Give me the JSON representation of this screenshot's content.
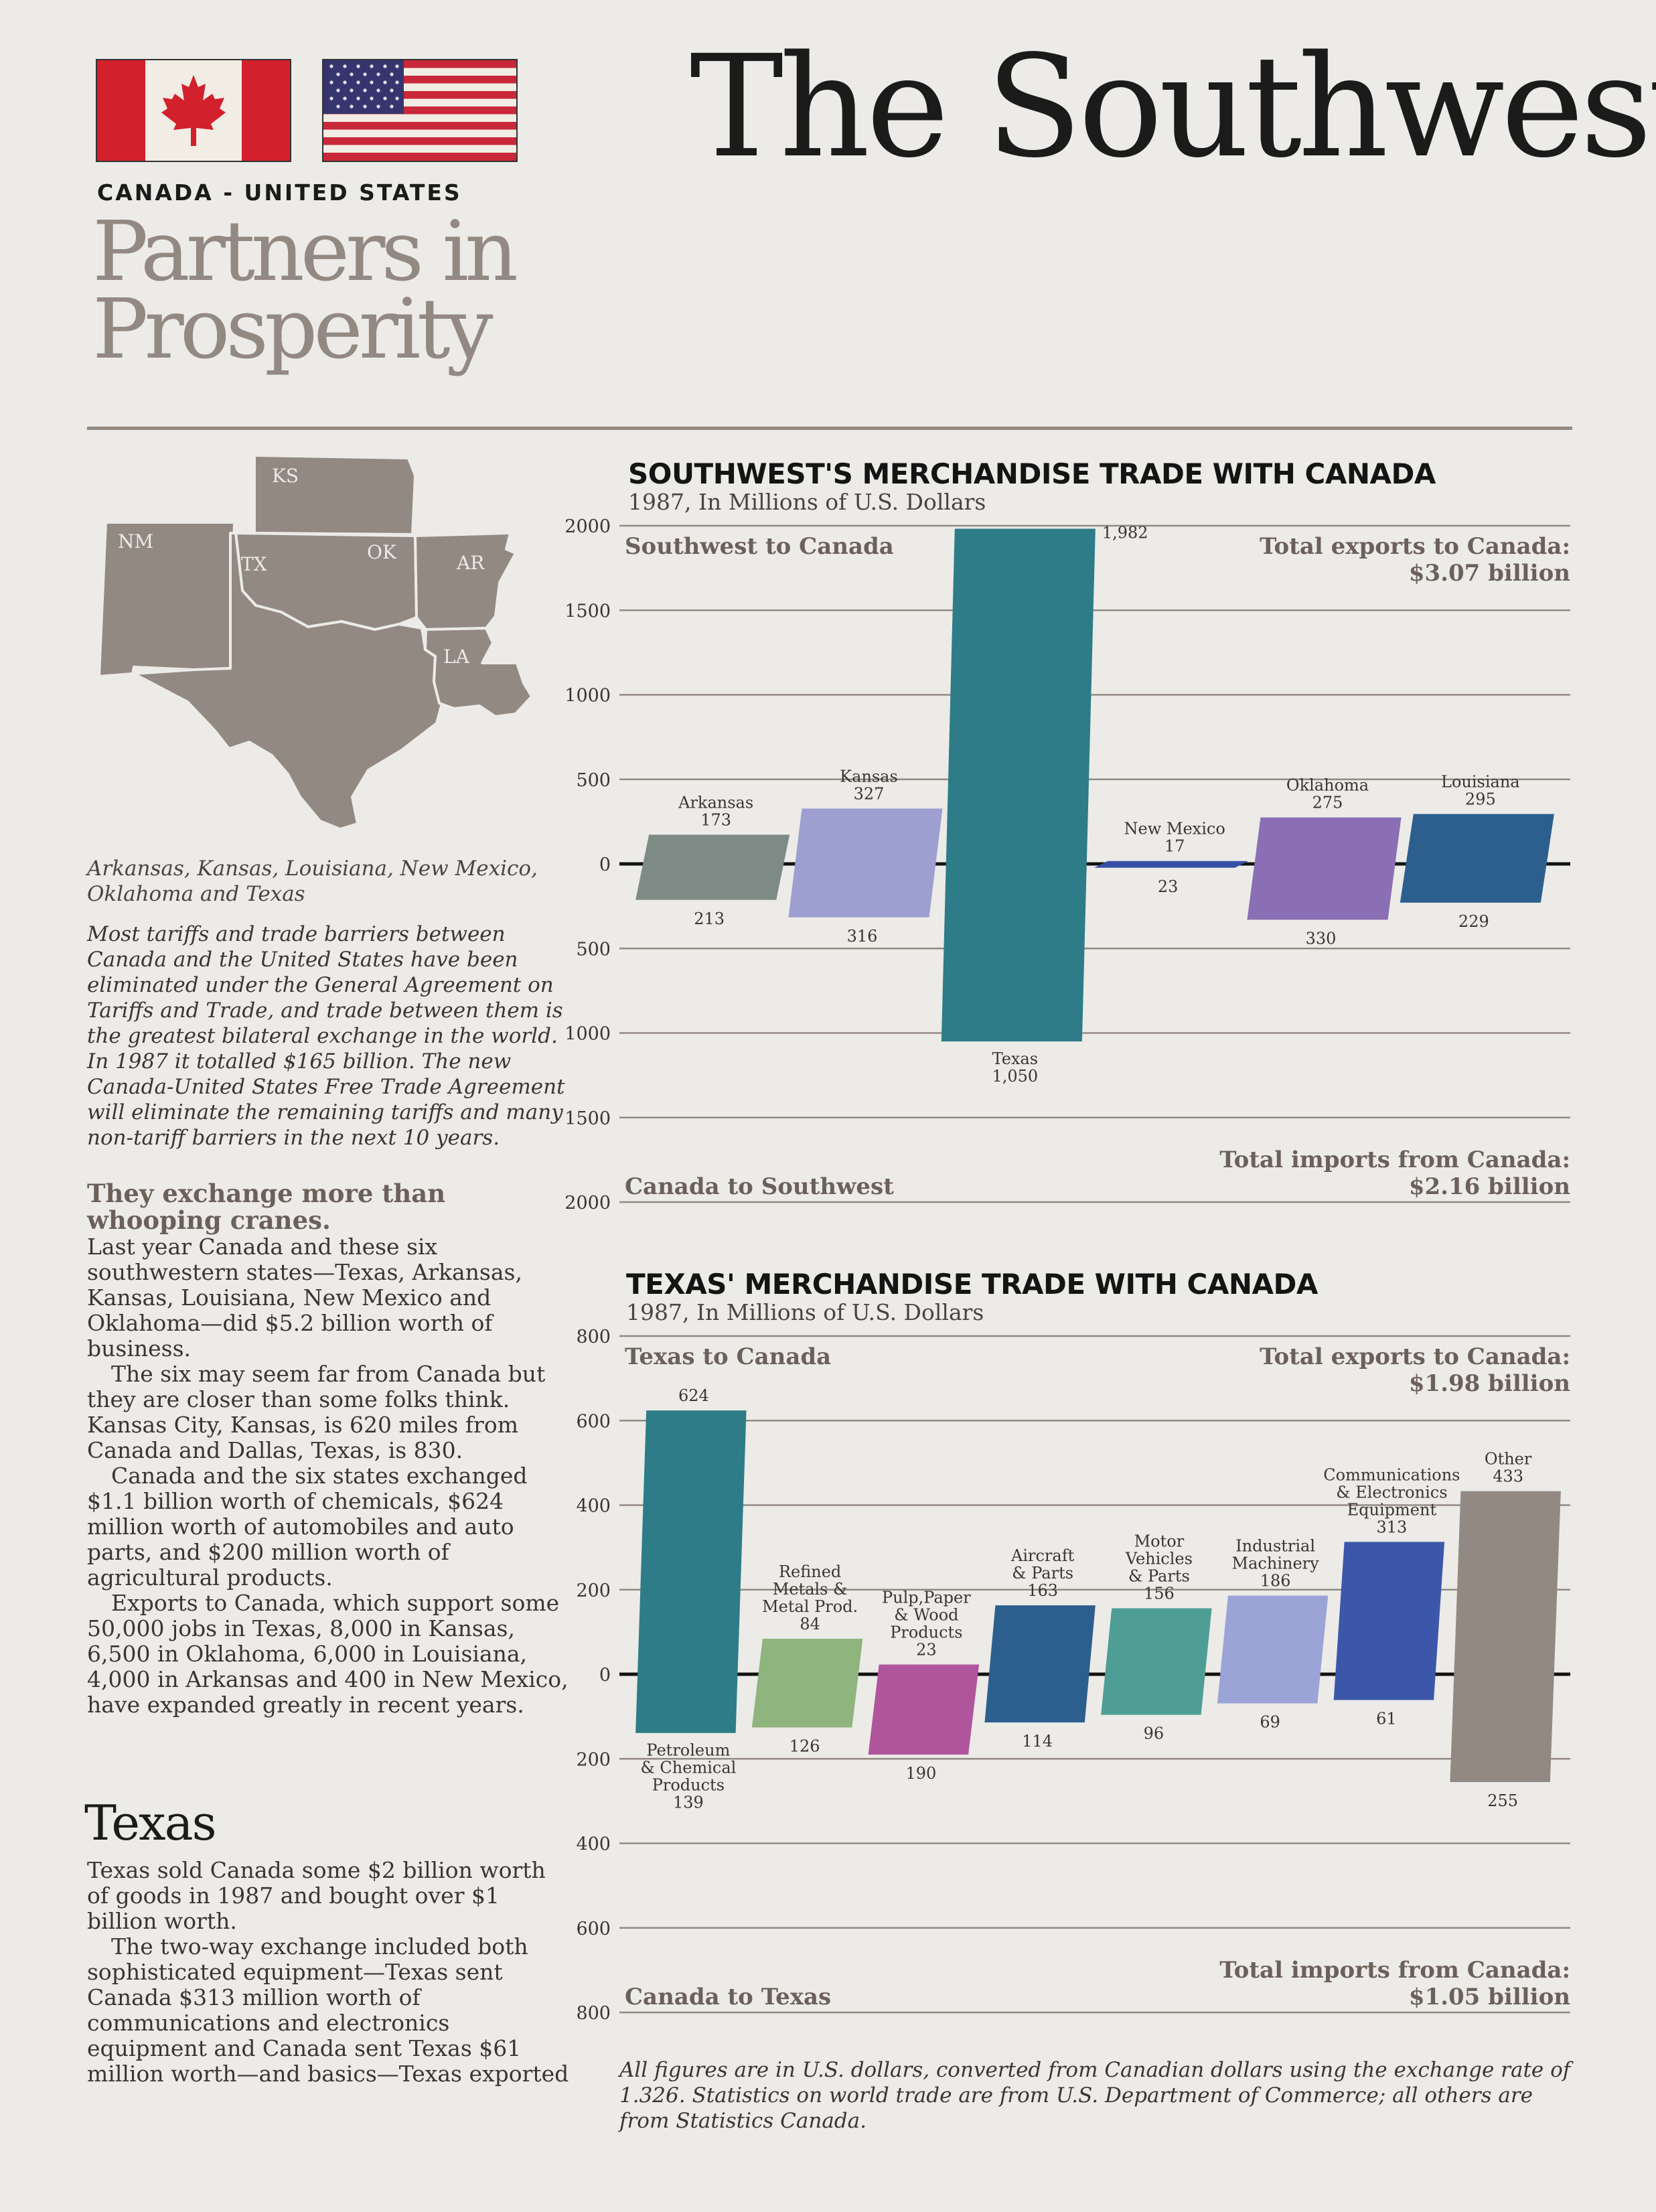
{
  "header": {
    "title": "The Southwest",
    "country_label": "CANADA - UNITED STATES",
    "subtitle_line1": "Partners in",
    "subtitle_line2": "Prosperity"
  },
  "map": {
    "states": [
      "KS",
      "NM",
      "TX",
      "OK",
      "AR",
      "LA"
    ],
    "fill_color": "#938983"
  },
  "left_column": {
    "states_caption": "Arkansas, Kansas, Louisiana, New Mexico, Oklahoma and Texas",
    "intro": "Most tariffs and trade barriers between Canada and the United States have been eliminated under the General Agreement on Tariffs and Trade, and trade between them is the greatest bilateral exchange in the world. In 1987 it totalled $165 billion. The new Canada-United States Free Trade Agreement will eliminate the remaining tariffs and many non-tariff barriers in the next 10 years.",
    "subhead": "They exchange more than whooping cranes.",
    "paragraphs": [
      "Last year Canada and these six southwestern states—Texas, Arkansas, Kansas, Louisiana, New Mexico and Oklahoma—did $5.2 billion worth of business.",
      "The six may seem far from Canada but they are closer than some folks think. Kansas City, Kansas, is 620 miles from Canada and Dallas, Texas, is 830.",
      "Canada and the six states exchanged $1.1 billion worth of chemicals, $624 million worth of automobiles and auto parts, and $200 million worth of agricultural products.",
      "Exports to Canada, which support some 50,000 jobs in Texas, 8,000 in Kansas, 6,500 in Oklahoma, 6,000 in Louisiana, 4,000 in Arkansas and 400 in New Mexico, have expanded greatly in recent years."
    ],
    "texas_heading": "Texas",
    "texas_paragraphs": [
      "Texas sold Canada some $2 billion worth of goods in 1987 and bought over $1 billion worth.",
      "The two-way exchange included both sophisticated equipment—Texas sent Canada $313 million worth of communications and electronics equipment and Canada sent Texas $61 million worth—and basics—Texas exported"
    ]
  },
  "chart_data": [
    {
      "type": "bar",
      "title": "SOUTHWEST'S MERCHANDISE TRADE WITH CANADA",
      "subtitle": "1987, In Millions of U.S. Dollars",
      "upper_label": "Southwest to Canada",
      "lower_label": "Canada to Southwest",
      "total_exports_label": "Total exports to Canada:",
      "total_exports_value": "$3.07 billion",
      "total_imports_label": "Total imports from Canada:",
      "total_imports_value": "$2.16 billion",
      "y_ticks": [
        "2000",
        "1500",
        "1000",
        "500",
        "0",
        "500",
        "1000",
        "1500",
        "2000"
      ],
      "ylim": [
        -2000,
        2000
      ],
      "categories": [
        {
          "name": "Arkansas",
          "exports": 173,
          "imports": 213,
          "exports_label": "173",
          "imports_label": "213",
          "color": "#7e8a85"
        },
        {
          "name": "Kansas",
          "exports": 327,
          "imports": 316,
          "exports_label": "327",
          "imports_label": "316",
          "color": "#9c9fd0"
        },
        {
          "name": "Texas",
          "exports": 1982,
          "imports": 1050,
          "exports_label": "1,982",
          "imports_label": "1,050",
          "color": "#2d7c88"
        },
        {
          "name": "New Mexico",
          "exports": 17,
          "imports": 23,
          "exports_label": "17",
          "imports_label": "23",
          "color": "#3650a5"
        },
        {
          "name": "Oklahoma",
          "exports": 275,
          "imports": 330,
          "exports_label": "275",
          "imports_label": "330",
          "color": "#8a6fb5"
        },
        {
          "name": "Louisiana",
          "exports": 295,
          "imports": 229,
          "exports_label": "295",
          "imports_label": "229",
          "color": "#2d5f8e"
        }
      ]
    },
    {
      "type": "bar",
      "title": "TEXAS' MERCHANDISE TRADE WITH CANADA",
      "subtitle": "1987, In Millions of U.S. Dollars",
      "upper_label": "Texas to Canada",
      "lower_label": "Canada to Texas",
      "total_exports_label": "Total exports to Canada:",
      "total_exports_value": "$1.98 billion",
      "total_imports_label": "Total imports from Canada:",
      "total_imports_value": "$1.05 billion",
      "y_ticks": [
        "800",
        "600",
        "400",
        "200",
        "0",
        "200",
        "400",
        "600",
        "800"
      ],
      "ylim": [
        -800,
        800
      ],
      "categories": [
        {
          "name": "Petroleum & Chemical Products",
          "name_lines": [
            "Petroleum",
            "& Chemical",
            "Products"
          ],
          "exports": 624,
          "imports": 139,
          "exports_label": "624",
          "imports_label": "139",
          "color": "#2d7c88"
        },
        {
          "name": "Refined Metals & Metal Prod.",
          "name_lines": [
            "Refined",
            "Metals &",
            "Metal Prod."
          ],
          "exports": 84,
          "imports": 126,
          "exports_label": "84",
          "imports_label": "126",
          "color": "#8fb47d"
        },
        {
          "name": "Pulp,Paper & Wood Products",
          "name_lines": [
            "Pulp,Paper",
            "& Wood",
            "Products"
          ],
          "exports": 23,
          "imports": 190,
          "exports_label": "23",
          "imports_label": "190",
          "color": "#b0559c"
        },
        {
          "name": "Aircraft & Parts",
          "name_lines": [
            "Aircraft",
            "& Parts"
          ],
          "exports": 163,
          "imports": 114,
          "exports_label": "163",
          "imports_label": "114",
          "color": "#2d5f8e"
        },
        {
          "name": "Motor Vehicles & Parts",
          "name_lines": [
            "Motor",
            "Vehicles",
            "& Parts"
          ],
          "exports": 156,
          "imports": 96,
          "exports_label": "156",
          "imports_label": "96",
          "color": "#4e9e96"
        },
        {
          "name": "Industrial Machinery",
          "name_lines": [
            "Industrial",
            "Machinery"
          ],
          "exports": 186,
          "imports": 69,
          "exports_label": "186",
          "imports_label": "69",
          "color": "#9ca3d6"
        },
        {
          "name": "Communications & Electronics Equipment",
          "name_lines": [
            "Communications",
            "& Electronics",
            "Equipment"
          ],
          "exports": 313,
          "imports": 61,
          "exports_label": "313",
          "imports_label": "61",
          "color": "#3c57aa"
        },
        {
          "name": "Other",
          "name_lines": [
            "Other"
          ],
          "exports": 433,
          "imports": 255,
          "exports_label": "433",
          "imports_label": "255",
          "color": "#938983"
        }
      ]
    }
  ],
  "footnote": "All figures are in U.S. dollars, converted from Canadian dollars using the exchange rate of 1.326. Statistics on world trade are from U.S. Department of Commerce; all others are from Statistics Canada."
}
